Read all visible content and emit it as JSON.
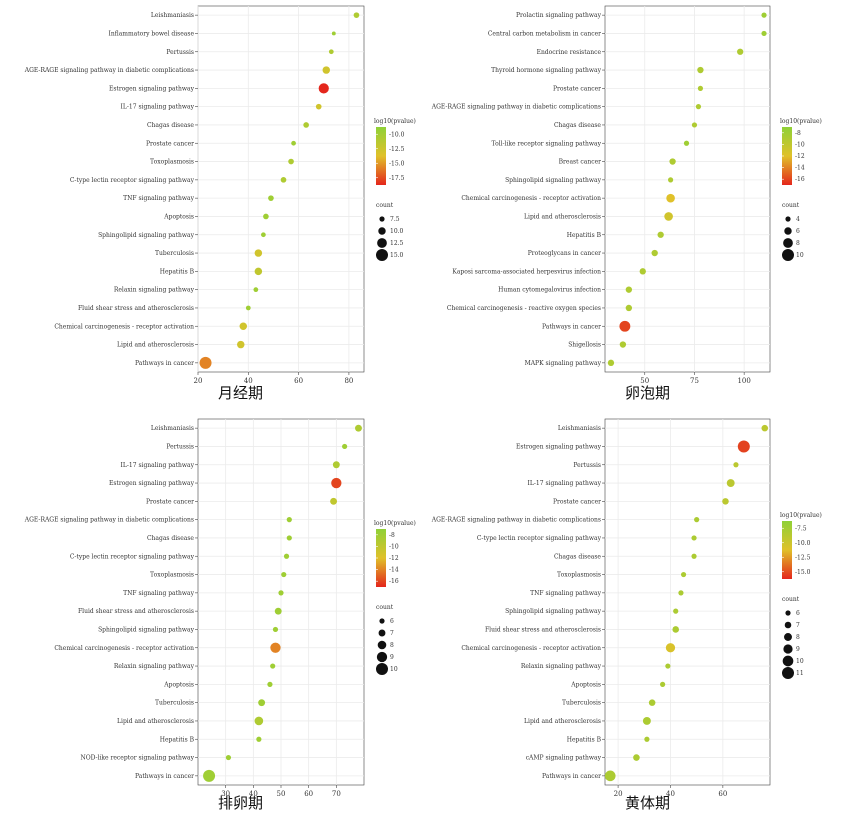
{
  "colors": {
    "low": "#8fd137",
    "mid": "#e0c12a",
    "high": "#e4261c",
    "panel_bg": "#ffffff",
    "grid": "#ebebeb"
  },
  "chart_data": [
    {
      "type": "scatter",
      "caption": "月经期",
      "categories": [
        "Leishmaniasis",
        "Inflammatory bowel disease",
        "Pertussis",
        "AGE-RAGE signaling pathway in diabetic complications",
        "Estrogen signaling pathway",
        "IL-17 signaling pathway",
        "Chagas disease",
        "Prostate cancer",
        "Toxoplasmosis",
        "C-type lectin receptor signaling pathway",
        "TNF signaling pathway",
        "Apoptosis",
        "Sphingolipid signaling pathway",
        "Tuberculosis",
        "Hepatitis B",
        "Relaxin signaling pathway",
        "Fluid shear stress and atherosclerosis",
        "Chemical carcinogenesis - receptor activation",
        "Lipid and atherosclerosis",
        "Pathways in cancer"
      ],
      "x": [
        83,
        74,
        73,
        71,
        70,
        68,
        63,
        58,
        57,
        54,
        49,
        47,
        46,
        44,
        44,
        43,
        40,
        38,
        37,
        23
      ],
      "count": [
        8,
        6,
        7,
        10,
        13,
        8,
        8,
        7,
        8,
        8,
        8,
        8,
        7,
        10,
        10,
        7,
        7,
        10,
        10,
        15
      ],
      "log10p": [
        -11,
        -10,
        -11,
        -13,
        -19,
        -13,
        -11,
        -10,
        -11,
        -11,
        -10,
        -10,
        -10,
        -13,
        -12,
        -10,
        -10,
        -13,
        -13,
        -16
      ],
      "xlim": [
        20,
        86
      ],
      "xticks": [
        20,
        40,
        60,
        80
      ],
      "color_legend": {
        "title": "log10(pvalue)",
        "ticks": [
          "-10.0",
          "-12.5",
          "-15.0",
          "-17.5"
        ],
        "range": [
          -9,
          -19
        ]
      },
      "size_legend": {
        "title": "count",
        "labels": [
          "7.5",
          "10.0",
          "12.5",
          "15.0"
        ],
        "values": [
          7.5,
          10,
          12.5,
          15
        ]
      }
    },
    {
      "type": "scatter",
      "caption": "卵泡期",
      "categories": [
        "Prolactin signaling pathway",
        "Central carbon metabolism in cancer",
        "Endocrine resistance",
        "Thyroid hormone signaling pathway",
        "Prostate cancer",
        "AGE-RAGE signaling pathway in diabetic complications",
        "Chagas disease",
        "Toll-like receptor signaling pathway",
        "Breast cancer",
        "Sphingolipid signaling pathway",
        "Chemical carcinogenesis - receptor activation",
        "Lipid and atherosclerosis",
        "Hepatitis B",
        "Proteoglycans in cancer",
        "Kaposi sarcoma-associated herpesvirus infection",
        "Human cytomegalovirus infection",
        "Chemical carcinogenesis - reactive oxygen species",
        "Pathways in cancer",
        "Shigellosis",
        "MAPK signaling pathway"
      ],
      "x": [
        110,
        110,
        98,
        78,
        78,
        77,
        75,
        71,
        64,
        63,
        63,
        62,
        58,
        55,
        49,
        42,
        42,
        40,
        39,
        33
      ],
      "count": [
        4,
        4,
        5,
        5,
        4,
        4,
        4,
        4,
        5,
        4,
        7,
        7,
        5,
        5,
        5,
        5,
        5,
        9,
        5,
        5
      ],
      "log10p": [
        -8,
        -8,
        -9,
        -9,
        -9,
        -9,
        -9,
        -8,
        -9,
        -9,
        -12,
        -11,
        -9,
        -9,
        -9,
        -9,
        -9,
        -16,
        -9,
        -9
      ],
      "xlim": [
        30,
        113
      ],
      "xticks": [
        50,
        75,
        100
      ],
      "color_legend": {
        "title": "log10(pvalue)",
        "ticks": [
          "-8",
          "-10",
          "-12",
          "-14",
          "-16"
        ],
        "range": [
          -7,
          -17
        ]
      },
      "size_legend": {
        "title": "count",
        "labels": [
          "4",
          "6",
          "8",
          "10"
        ],
        "values": [
          4,
          6,
          8,
          10
        ]
      }
    },
    {
      "type": "scatter",
      "caption": "排卵期",
      "categories": [
        "Leishmaniasis",
        "Pertussis",
        "IL-17 signaling pathway",
        "Estrogen signaling pathway",
        "Prostate cancer",
        "AGE-RAGE signaling pathway in diabetic complications",
        "Chagas disease",
        "C-type lectin receptor signaling pathway",
        "Toxoplasmosis",
        "TNF signaling pathway",
        "Fluid shear stress and atherosclerosis",
        "Sphingolipid signaling pathway",
        "Chemical carcinogenesis - receptor activation",
        "Relaxin signaling pathway",
        "Apoptosis",
        "Tuberculosis",
        "Lipid and atherosclerosis",
        "Hepatitis B",
        "NOD-like receptor signaling pathway",
        "Pathways in cancer"
      ],
      "x": [
        78,
        73,
        70,
        70,
        69,
        53,
        53,
        52,
        51,
        50,
        49,
        48,
        48,
        47,
        46,
        43,
        42,
        42,
        31,
        24
      ],
      "count": [
        7,
        6,
        7,
        9,
        7,
        6,
        6,
        6,
        6,
        6,
        7,
        6,
        9,
        6,
        6,
        7,
        8,
        6,
        6,
        10
      ],
      "log10p": [
        -9,
        -8,
        -9,
        -16,
        -10,
        -8,
        -8,
        -8,
        -8,
        -8,
        -8,
        -8,
        -14,
        -8,
        -8,
        -8,
        -9,
        -8,
        -8,
        -8
      ],
      "xlim": [
        20,
        80
      ],
      "xticks": [
        30,
        40,
        50,
        60,
        70
      ],
      "color_legend": {
        "title": "log10(pvalue)",
        "ticks": [
          "-8",
          "-10",
          "-12",
          "-14",
          "-16"
        ],
        "range": [
          -7,
          -17
        ]
      },
      "size_legend": {
        "title": "count",
        "labels": [
          "6",
          "7",
          "8",
          "9",
          "10"
        ],
        "values": [
          6,
          7,
          8,
          9,
          10
        ]
      }
    },
    {
      "type": "scatter",
      "caption": "黄体期",
      "categories": [
        "Leishmaniasis",
        "Estrogen signaling pathway",
        "Pertussis",
        "IL-17 signaling pathway",
        "Prostate cancer",
        "AGE-RAGE signaling pathway in diabetic complications",
        "C-type lectin receptor signaling pathway",
        "Chagas disease",
        "Toxoplasmosis",
        "TNF signaling pathway",
        "Sphingolipid signaling pathway",
        "Fluid shear stress and atherosclerosis",
        "Chemical carcinogenesis - receptor activation",
        "Relaxin signaling pathway",
        "Apoptosis",
        "Tuberculosis",
        "Lipid and atherosclerosis",
        "Hepatitis B",
        "cAMP signaling pathway",
        "Pathways in cancer"
      ],
      "x": [
        76,
        68,
        65,
        63,
        61,
        50,
        49,
        49,
        45,
        44,
        42,
        42,
        40,
        39,
        37,
        33,
        31,
        31,
        27,
        17
      ],
      "count": [
        7,
        11,
        6,
        8,
        7,
        6,
        6,
        6,
        6,
        6,
        6,
        7,
        9,
        6,
        6,
        7,
        8,
        6,
        7,
        10
      ],
      "log10p": [
        -9,
        -16,
        -9,
        -9,
        -9,
        -8,
        -8,
        -8,
        -8,
        -8,
        -8,
        -8,
        -11,
        -8,
        -8,
        -8,
        -8,
        -8,
        -8,
        -8
      ],
      "xlim": [
        15,
        78
      ],
      "xticks": [
        20,
        40,
        60
      ],
      "color_legend": {
        "title": "log10(pvalue)",
        "ticks": [
          "-7.5",
          "-10.0",
          "-12.5",
          "-15.0"
        ],
        "range": [
          -6,
          -17
        ]
      },
      "size_legend": {
        "title": "count",
        "labels": [
          "6",
          "7",
          "8",
          "9",
          "10",
          "11"
        ],
        "values": [
          6,
          7,
          8,
          9,
          10,
          11
        ]
      }
    }
  ]
}
